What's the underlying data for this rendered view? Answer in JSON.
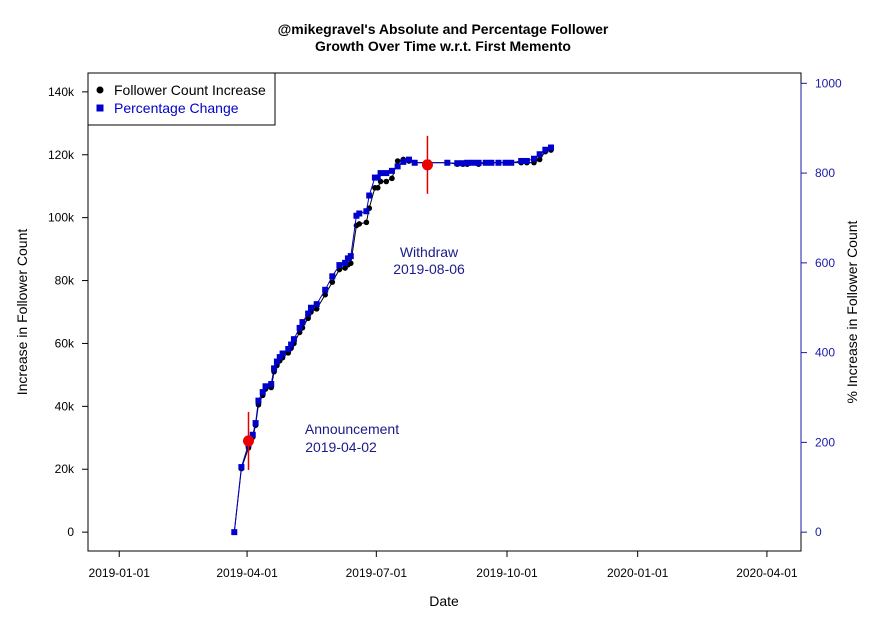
{
  "chart_data": {
    "type": "line",
    "title": [
      "@mikegravel's Absolute and Percentage Follower",
      "Growth Over Time w.r.t. First Memento"
    ],
    "xlabel": "Date",
    "ylabel_left": "Increase in Follower Count",
    "ylabel_right": "% Increase in Follower Count",
    "xlim": [
      "2018-12-10",
      "2020-04-25"
    ],
    "ylim_left": [
      -6000,
      146000
    ],
    "ylim_right": [
      -42,
      1023
    ],
    "x_ticks": [
      "2019-01-01",
      "2019-04-01",
      "2019-07-01",
      "2019-10-01",
      "2020-01-01",
      "2020-04-01"
    ],
    "y_ticks_left": [
      {
        "value": 0,
        "label": "0"
      },
      {
        "value": 20000,
        "label": "20k"
      },
      {
        "value": 40000,
        "label": "40k"
      },
      {
        "value": 60000,
        "label": "60k"
      },
      {
        "value": 80000,
        "label": "80k"
      },
      {
        "value": 100000,
        "label": "100k"
      },
      {
        "value": 120000,
        "label": "120k"
      },
      {
        "value": 140000,
        "label": "140k"
      }
    ],
    "y_ticks_right": [
      0,
      200,
      400,
      600,
      800,
      1000
    ],
    "legend": {
      "placement": "top-left",
      "entries": [
        {
          "label": "Follower Count Increase",
          "color": "#000000",
          "marker": "circle"
        },
        {
          "label": "Percentage Change",
          "color": "#0000cc",
          "marker": "square"
        }
      ]
    },
    "series": [
      {
        "name": "Follower Count Increase",
        "axis": "left",
        "color": "#000000",
        "marker": "circle",
        "x": [
          "2019-03-23",
          "2019-03-28",
          "2019-04-02",
          "2019-04-05",
          "2019-04-07",
          "2019-04-09",
          "2019-04-12",
          "2019-04-14",
          "2019-04-18",
          "2019-04-20",
          "2019-04-22",
          "2019-04-24",
          "2019-04-26",
          "2019-04-30",
          "2019-05-02",
          "2019-05-04",
          "2019-05-08",
          "2019-05-10",
          "2019-05-14",
          "2019-05-16",
          "2019-05-20",
          "2019-05-26",
          "2019-05-31",
          "2019-06-05",
          "2019-06-09",
          "2019-06-11",
          "2019-06-13",
          "2019-06-17",
          "2019-06-19",
          "2019-06-24",
          "2019-06-26",
          "2019-06-30",
          "2019-07-02",
          "2019-07-04",
          "2019-07-08",
          "2019-07-12",
          "2019-07-16",
          "2019-07-20",
          "2019-07-24",
          "2019-07-28",
          "2019-08-06",
          "2019-08-20",
          "2019-08-27",
          "2019-08-31",
          "2019-09-03",
          "2019-09-07",
          "2019-09-11",
          "2019-09-16",
          "2019-09-20",
          "2019-09-25",
          "2019-09-30",
          "2019-10-04",
          "2019-10-11",
          "2019-10-15",
          "2019-10-20",
          "2019-10-24",
          "2019-10-28",
          "2019-11-01"
        ],
        "y": [
          0,
          20200,
          26800,
          30200,
          34000,
          40500,
          43500,
          45500,
          46000,
          51000,
          53000,
          54500,
          55500,
          57000,
          58500,
          60000,
          63500,
          65000,
          68000,
          70000,
          71000,
          75500,
          79500,
          83500,
          84000,
          85000,
          85500,
          97500,
          98000,
          98500,
          103000,
          109500,
          109500,
          111500,
          111500,
          112500,
          118000,
          118500,
          118000,
          117500,
          117500,
          117500,
          117000,
          117000,
          117000,
          117500,
          117000,
          117500,
          117500,
          117500,
          117500,
          117500,
          117500,
          117500,
          117500,
          118500,
          121000,
          121500
        ]
      },
      {
        "name": "Percentage Change",
        "axis": "right",
        "color": "#0000cc",
        "marker": "square",
        "x": [
          "2019-03-23",
          "2019-03-28",
          "2019-04-02",
          "2019-04-05",
          "2019-04-07",
          "2019-04-09",
          "2019-04-12",
          "2019-04-14",
          "2019-04-18",
          "2019-04-20",
          "2019-04-22",
          "2019-04-24",
          "2019-04-26",
          "2019-04-30",
          "2019-05-02",
          "2019-05-04",
          "2019-05-08",
          "2019-05-10",
          "2019-05-14",
          "2019-05-16",
          "2019-05-20",
          "2019-05-26",
          "2019-05-31",
          "2019-06-05",
          "2019-06-09",
          "2019-06-11",
          "2019-06-13",
          "2019-06-17",
          "2019-06-19",
          "2019-06-24",
          "2019-06-26",
          "2019-06-30",
          "2019-07-02",
          "2019-07-04",
          "2019-07-08",
          "2019-07-12",
          "2019-07-16",
          "2019-07-20",
          "2019-07-24",
          "2019-07-28",
          "2019-08-06",
          "2019-08-20",
          "2019-08-27",
          "2019-08-31",
          "2019-09-03",
          "2019-09-07",
          "2019-09-11",
          "2019-09-16",
          "2019-09-20",
          "2019-09-25",
          "2019-09-30",
          "2019-10-04",
          "2019-10-11",
          "2019-10-15",
          "2019-10-20",
          "2019-10-24",
          "2019-10-28",
          "2019-11-01"
        ],
        "y": [
          0,
          145,
          196,
          217,
          243,
          293,
          312,
          325,
          330,
          365,
          380,
          390,
          398,
          408,
          418,
          430,
          455,
          468,
          487,
          500,
          508,
          540,
          570,
          595,
          600,
          610,
          615,
          705,
          710,
          715,
          750,
          790,
          790,
          800,
          800,
          805,
          815,
          825,
          830,
          823,
          823,
          823,
          822,
          822,
          823,
          823,
          823,
          823,
          823,
          823,
          823,
          823,
          827,
          827,
          832,
          842,
          852,
          857
        ]
      }
    ],
    "annotations": [
      {
        "label": "Announcement",
        "date_label": "2019-04-02",
        "x": "2019-04-02",
        "y": 29000
      },
      {
        "label": "Withdraw",
        "date_label": "2019-08-06",
        "x": "2019-08-06",
        "y": 116800
      }
    ],
    "grid": false
  }
}
